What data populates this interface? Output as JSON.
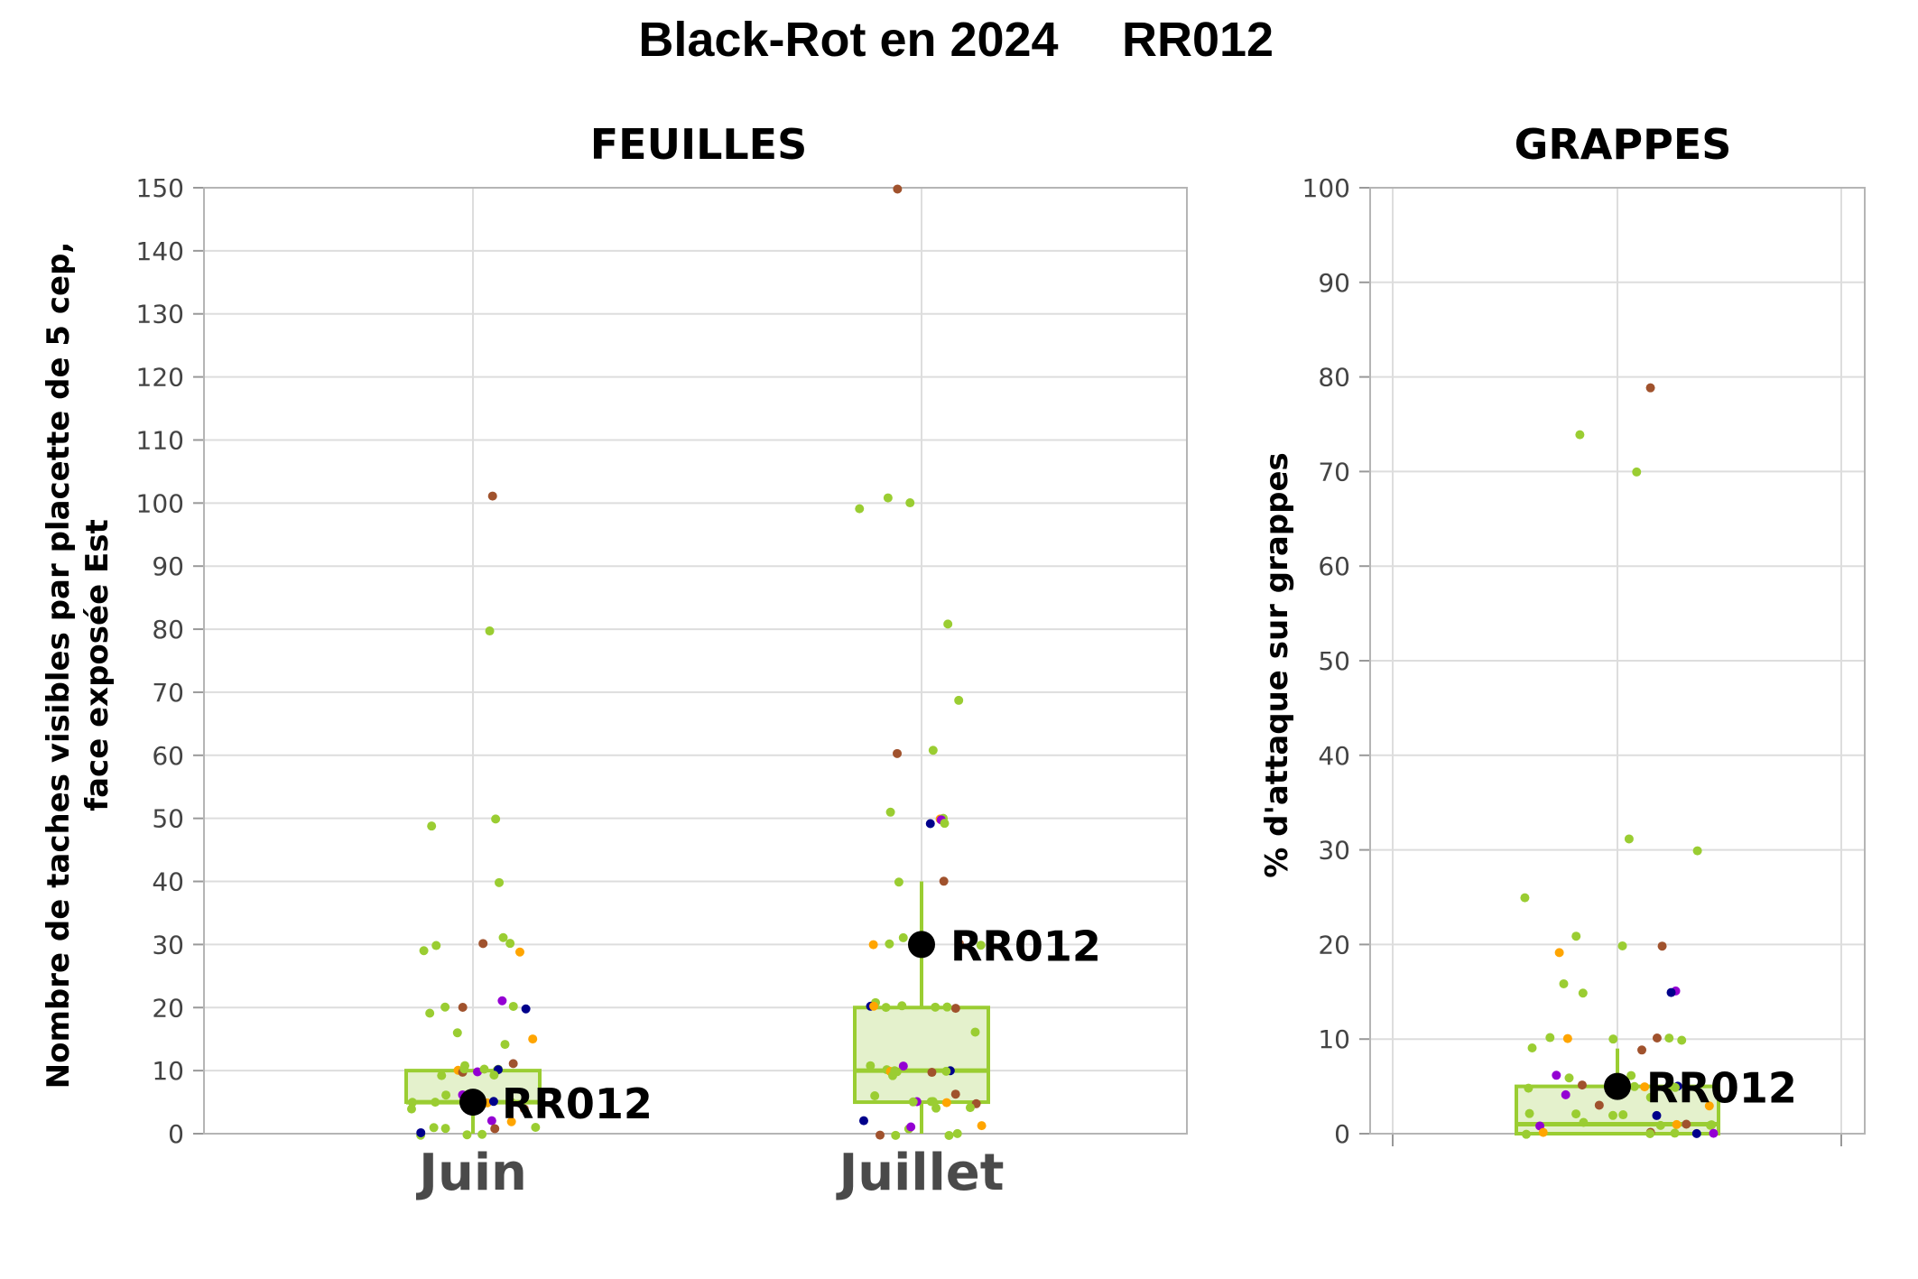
{
  "title_main": "Black-Rot en 2024",
  "title_code": "RR012",
  "colors": {
    "box": "#9acd32",
    "box_fill": "#e4f1cc",
    "grid": "#dddddd",
    "frame": "#b5b5b5",
    "highlight": "#000000",
    "points": [
      "#9acd32",
      "#a0522d",
      "#9400d3",
      "#ffa500",
      "#00008b"
    ]
  },
  "chart_data": [
    {
      "type": "box",
      "title": "FEUILLES",
      "ylabel_line1": "Nombre de taches visibles par placette de 5 cep,",
      "ylabel_line2": "face exposée Est",
      "ylim": [
        0,
        150
      ],
      "yticks": [
        "0",
        "10",
        "20",
        "30",
        "40",
        "50",
        "60",
        "70",
        "80",
        "90",
        "100",
        "110",
        "120",
        "130",
        "140",
        "150"
      ],
      "categories": [
        "Juin",
        "Juillet"
      ],
      "boxes": [
        {
          "category": "Juin",
          "q1": 5,
          "median": 5,
          "q3": 10,
          "whisker_low": 0,
          "whisker_high": 10
        },
        {
          "category": "Juillet",
          "q1": 5,
          "median": 10,
          "q3": 20,
          "whisker_low": 0,
          "whisker_high": 40
        }
      ],
      "highlight": [
        {
          "category": "Juin",
          "value": 5,
          "label": "RR012"
        },
        {
          "category": "Juillet",
          "value": 30,
          "label": "RR012"
        }
      ],
      "points": [
        {
          "category": "Juin",
          "values": [
            101,
            80,
            50,
            49,
            40,
            31,
            30,
            30,
            30,
            29,
            29,
            21,
            20,
            20,
            20,
            20,
            19,
            16,
            15,
            14,
            11,
            11,
            10,
            10,
            10,
            10,
            10,
            10,
            10,
            10,
            9,
            9,
            6,
            6,
            5,
            5,
            5,
            5,
            5,
            5,
            5,
            5,
            4,
            4,
            2,
            2,
            1,
            1,
            1,
            1,
            0,
            0,
            0,
            0
          ]
        },
        {
          "category": "Juillet",
          "values": [
            150,
            101,
            100,
            99,
            81,
            69,
            61,
            60,
            51,
            50,
            50,
            50,
            49,
            49,
            40,
            40,
            31,
            30,
            30,
            30,
            30,
            30,
            29,
            21,
            20,
            20,
            20,
            20,
            20,
            20,
            20,
            16,
            11,
            11,
            10,
            10,
            10,
            10,
            10,
            10,
            10,
            9,
            6,
            6,
            5,
            5,
            5,
            5,
            5,
            5,
            4,
            4,
            2,
            1,
            1,
            1,
            0,
            0,
            0,
            0
          ]
        }
      ]
    },
    {
      "type": "box",
      "title": "GRAPPES",
      "ylabel": "% d'attaque sur grappes",
      "ylim": [
        0,
        100
      ],
      "yticks": [
        "0",
        "10",
        "20",
        "30",
        "40",
        "50",
        "60",
        "70",
        "80",
        "90",
        "100"
      ],
      "categories": [
        ""
      ],
      "boxes": [
        {
          "category": "",
          "q1": 0,
          "median": 1,
          "q3": 5,
          "whisker_low": 0,
          "whisker_high": 9
        }
      ],
      "highlight": [
        {
          "category": "",
          "value": 5,
          "label": "RR012"
        }
      ],
      "points": [
        {
          "category": "",
          "values": [
            79,
            74,
            70,
            31,
            30,
            25,
            21,
            20,
            20,
            19,
            16,
            15,
            15,
            15,
            10,
            10,
            10,
            10,
            10,
            10,
            9,
            9,
            6,
            6,
            6,
            6,
            5,
            5,
            5,
            5,
            5,
            5,
            5,
            4,
            4,
            3,
            3,
            2,
            2,
            2,
            2,
            2,
            1,
            1,
            1,
            1,
            1,
            1,
            1,
            0,
            0,
            0,
            0,
            0,
            0,
            0
          ]
        }
      ]
    }
  ]
}
